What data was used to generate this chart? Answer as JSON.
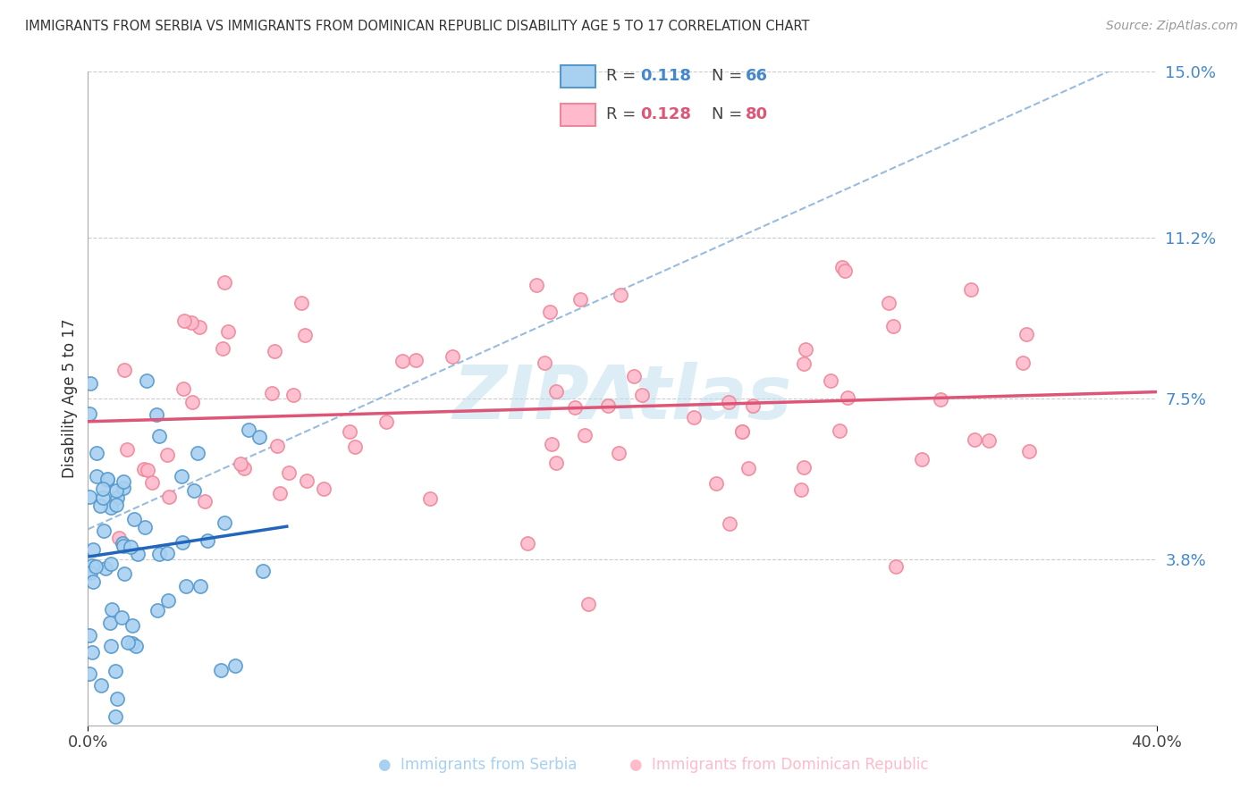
{
  "title": "IMMIGRANTS FROM SERBIA VS IMMIGRANTS FROM DOMINICAN REPUBLIC DISABILITY AGE 5 TO 17 CORRELATION CHART",
  "source": "Source: ZipAtlas.com",
  "ylabel": "Disability Age 5 to 17",
  "xlim": [
    0.0,
    40.0
  ],
  "ylim": [
    0.0,
    15.0
  ],
  "ytick_vals": [
    3.8,
    7.5,
    11.2,
    15.0
  ],
  "ytick_labels": [
    "3.8%",
    "7.5%",
    "11.2%",
    "15.0%"
  ],
  "xtick_vals": [
    0.0,
    40.0
  ],
  "xtick_labels": [
    "0.0%",
    "40.0%"
  ],
  "legend_r1": "0.118",
  "legend_n1": "66",
  "legend_r2": "0.128",
  "legend_n2": "80",
  "color_serbia_fill": "#A8D0F0",
  "color_serbia_edge": "#5599CC",
  "color_dominican_fill": "#FFBBCC",
  "color_dominican_edge": "#EE8899",
  "color_trend_serbia": "#2266BB",
  "color_trend_dominican": "#DD5577",
  "color_trend_dashed": "#99BBDD",
  "color_ytick": "#4488CC",
  "background_color": "#FFFFFF",
  "watermark": "ZIPAtlas",
  "watermark_color": "#BBDDEE"
}
